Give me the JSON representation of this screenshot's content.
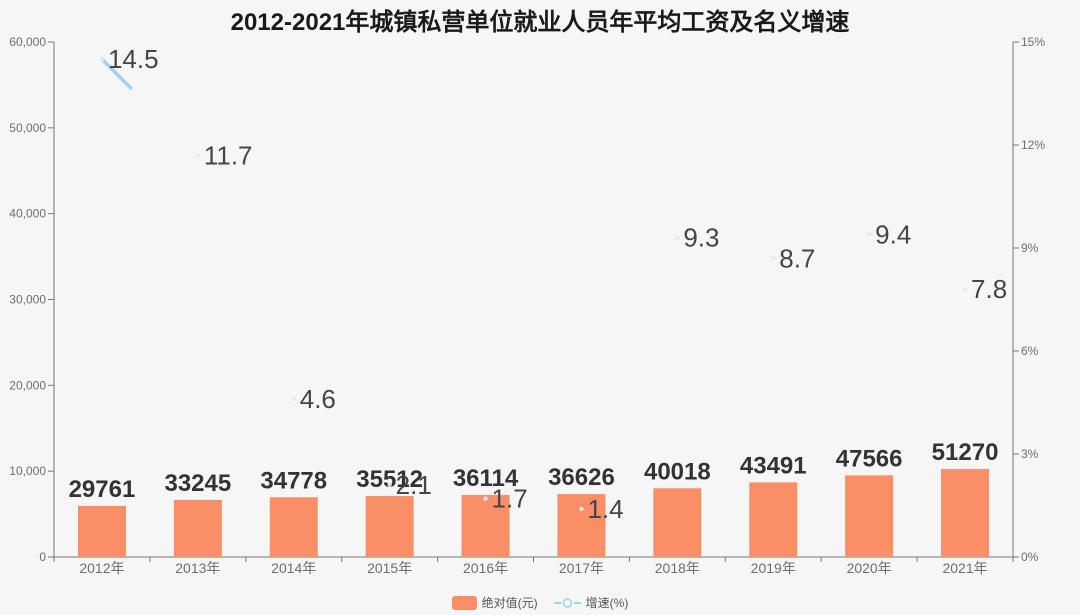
{
  "title": "2012-2021年城镇私营单位就业人员年平均工资及名义增速",
  "chart_data": {
    "type": "bar",
    "categories": [
      "2012年",
      "2013年",
      "2014年",
      "2015年",
      "2016年",
      "2017年",
      "2018年",
      "2019年",
      "2020年",
      "2021年"
    ],
    "series": [
      {
        "name": "绝对值(元)",
        "type": "bar",
        "axis": "left",
        "values": [
          29761,
          33245,
          34778,
          35512,
          36114,
          36626,
          40018,
          43491,
          47566,
          51270
        ]
      },
      {
        "name": "增速(%)",
        "type": "line",
        "axis": "right",
        "values": [
          14.5,
          11.7,
          4.6,
          2.1,
          1.7,
          1.4,
          9.3,
          8.7,
          9.4,
          7.8
        ]
      }
    ],
    "left_axis": {
      "min": 0,
      "max": 60000,
      "step": 10000,
      "tick_labels": [
        "0",
        "10,000",
        "20,000",
        "30,000",
        "40,000",
        "50,000",
        "60,000"
      ]
    },
    "right_axis": {
      "min": 0,
      "max": 15,
      "step": 3,
      "tick_labels": [
        "0%",
        "3%",
        "6%",
        "9%",
        "12%",
        "15%"
      ]
    },
    "grid": false,
    "legend_position": "bottom",
    "bar_visual_scale": 0.2,
    "line_visible_fraction": 0.3
  },
  "legend": {
    "items": [
      {
        "label": "绝对值(元)",
        "type": "bar"
      },
      {
        "label": "增速(%)",
        "type": "line"
      }
    ]
  },
  "colors": {
    "background": "#f6f6f6",
    "bar": "#FA8E66",
    "line": "#9ED2F3",
    "marker_fill": "#DBEDFA",
    "title": "#1a1a1a",
    "value_label": "#333333",
    "rate_label": "#454545",
    "axis": "#777777",
    "tick_label": "#6e6e6e"
  }
}
